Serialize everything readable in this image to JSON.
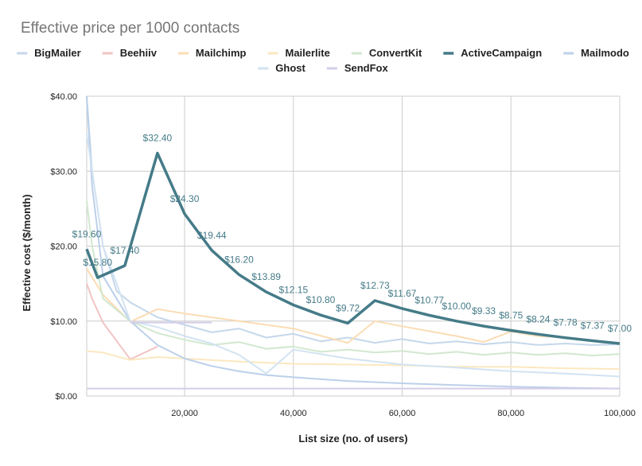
{
  "chart_data": {
    "type": "line",
    "title": "Effective price per 1000 contacts",
    "xlabel": "List size (no. of users)",
    "ylabel": "Effective cost ($/month)",
    "xlim": [
      2000,
      100000
    ],
    "ylim": [
      0,
      40
    ],
    "x_ticks": [
      "20,000",
      "40,000",
      "60,000",
      "80,000",
      "100,000"
    ],
    "x_tick_values": [
      20000,
      40000,
      60000,
      80000,
      100000
    ],
    "y_ticks": [
      "$0.00",
      "$10.00",
      "$20.00",
      "$30.00",
      "$40.00"
    ],
    "y_tick_values": [
      0,
      10,
      20,
      30,
      40
    ],
    "grid": true,
    "legend_position": "top",
    "series": [
      {
        "name": "BigMailer",
        "color": "#c5d7ea",
        "points": [
          [
            2000,
            40
          ],
          [
            3000,
            30
          ],
          [
            5000,
            20
          ],
          [
            7500,
            14
          ],
          [
            10000,
            12.5
          ],
          [
            15000,
            10.5
          ],
          [
            20000,
            9.5
          ],
          [
            25000,
            8.5
          ],
          [
            30000,
            9
          ],
          [
            35000,
            7.8
          ],
          [
            40000,
            8.3
          ],
          [
            45000,
            7.3
          ],
          [
            50000,
            7.8
          ],
          [
            55000,
            7.1
          ],
          [
            60000,
            7.6
          ],
          [
            65000,
            7.0
          ],
          [
            70000,
            7.3
          ],
          [
            75000,
            6.9
          ],
          [
            80000,
            7.2
          ],
          [
            85000,
            6.8
          ],
          [
            90000,
            7.0
          ],
          [
            95000,
            6.8
          ],
          [
            100000,
            6.9
          ]
        ]
      },
      {
        "name": "Beehiiv",
        "color": "#f2c4c4",
        "points": [
          [
            2000,
            15
          ],
          [
            3000,
            13
          ],
          [
            5000,
            9.8
          ],
          [
            10000,
            4.9
          ],
          [
            15000,
            6.6
          ]
        ]
      },
      {
        "name": "Mailchimp",
        "color": "#fbdcb4",
        "points": [
          [
            2000,
            17
          ],
          [
            5000,
            13.5
          ],
          [
            10000,
            9.9
          ],
          [
            15000,
            11.6
          ],
          [
            20000,
            11
          ],
          [
            30000,
            10
          ],
          [
            40000,
            9
          ],
          [
            50000,
            7.1
          ],
          [
            55000,
            10
          ],
          [
            60000,
            9.3
          ],
          [
            70000,
            8
          ],
          [
            75000,
            7.2
          ],
          [
            80000,
            8.6
          ],
          [
            85000,
            8.0
          ],
          [
            90000,
            7.8
          ],
          [
            95000,
            7.4
          ],
          [
            100000,
            7.1
          ]
        ]
      },
      {
        "name": "Mailerlite",
        "color": "#fbe8c0",
        "points": [
          [
            2000,
            6
          ],
          [
            5000,
            5.8
          ],
          [
            10000,
            4.8
          ],
          [
            15000,
            5.2
          ],
          [
            20000,
            5
          ],
          [
            30000,
            4.6
          ],
          [
            40000,
            4.3
          ],
          [
            50000,
            4.2
          ],
          [
            60000,
            4.1
          ],
          [
            70000,
            3.9
          ],
          [
            80000,
            3.9
          ],
          [
            90000,
            3.7
          ],
          [
            100000,
            3.6
          ]
        ]
      },
      {
        "name": "ConvertKit",
        "color": "#d1e8cf",
        "points": [
          [
            2000,
            26
          ],
          [
            3000,
            20
          ],
          [
            5000,
            13
          ],
          [
            10000,
            10
          ],
          [
            15000,
            8.4
          ],
          [
            20000,
            7.5
          ],
          [
            25000,
            6.8
          ],
          [
            30000,
            7.2
          ],
          [
            35000,
            6.3
          ],
          [
            40000,
            6.6
          ],
          [
            45000,
            5.9
          ],
          [
            50000,
            6.2
          ],
          [
            55000,
            5.8
          ],
          [
            60000,
            6.0
          ],
          [
            65000,
            5.6
          ],
          [
            70000,
            5.9
          ],
          [
            75000,
            5.5
          ],
          [
            80000,
            5.8
          ],
          [
            85000,
            5.5
          ],
          [
            90000,
            5.7
          ],
          [
            95000,
            5.4
          ],
          [
            100000,
            5.6
          ]
        ]
      },
      {
        "name": "ActiveCampaign",
        "color": "#457b88",
        "points": [
          [
            2000,
            19.6
          ],
          [
            4000,
            15.8
          ],
          [
            9000,
            17.4
          ],
          [
            15000,
            32.4
          ],
          [
            20000,
            24.3
          ],
          [
            25000,
            19.44
          ],
          [
            30000,
            16.2
          ],
          [
            35000,
            13.89
          ],
          [
            40000,
            12.15
          ],
          [
            45000,
            10.8
          ],
          [
            50000,
            9.72
          ],
          [
            55000,
            12.73
          ],
          [
            60000,
            11.67
          ],
          [
            65000,
            10.77
          ],
          [
            70000,
            10.0
          ],
          [
            75000,
            9.33
          ],
          [
            80000,
            8.75
          ],
          [
            85000,
            8.24
          ],
          [
            90000,
            7.78
          ],
          [
            95000,
            7.37
          ],
          [
            100000,
            7.0
          ]
        ],
        "labels": [
          "$19.60",
          "$15.80",
          "$17.40",
          "$32.40",
          "$24.30",
          "$19.44",
          "$16.20",
          "$13.89",
          "$12.15",
          "$10.80",
          "$9.72",
          "$12.73",
          "$11.67",
          "$10.77",
          "$10.00",
          "$9.33",
          "$8.75",
          "$8.24",
          "$7.78",
          "$7.37",
          "$7.00"
        ]
      },
      {
        "name": "Mailmodo",
        "color": "#bcd0ea",
        "points": [
          [
            2000,
            40
          ],
          [
            3000,
            28
          ],
          [
            5000,
            16
          ],
          [
            10000,
            10
          ],
          [
            15000,
            6.8
          ],
          [
            20000,
            5
          ],
          [
            25000,
            4
          ],
          [
            30000,
            3.3
          ],
          [
            35000,
            2.8
          ],
          [
            40000,
            2.5
          ],
          [
            50000,
            2
          ],
          [
            60000,
            1.7
          ],
          [
            70000,
            1.45
          ],
          [
            80000,
            1.25
          ],
          [
            90000,
            1.1
          ],
          [
            100000,
            1.0
          ]
        ]
      },
      {
        "name": "Ghost",
        "color": "#d2e3f2",
        "points": [
          [
            2000,
            35
          ],
          [
            5000,
            20
          ],
          [
            10000,
            10
          ],
          [
            15000,
            9.2
          ],
          [
            20000,
            8
          ],
          [
            25000,
            7
          ],
          [
            30000,
            5.5
          ],
          [
            35000,
            3
          ],
          [
            40000,
            6.2
          ],
          [
            50000,
            5
          ],
          [
            60000,
            4.2
          ],
          [
            70000,
            3.8
          ],
          [
            80000,
            3.3
          ],
          [
            90000,
            3.0
          ],
          [
            100000,
            2.6
          ]
        ]
      },
      {
        "name": "SendFox",
        "color": "#d4cde8",
        "points": [
          [
            2000,
            1.0
          ],
          [
            100000,
            1.0
          ]
        ]
      }
    ]
  },
  "extra_lines": {
    "sendfox_segment": [
      [
        10000,
        9.8
      ],
      [
        25000,
        9.8
      ]
    ]
  }
}
